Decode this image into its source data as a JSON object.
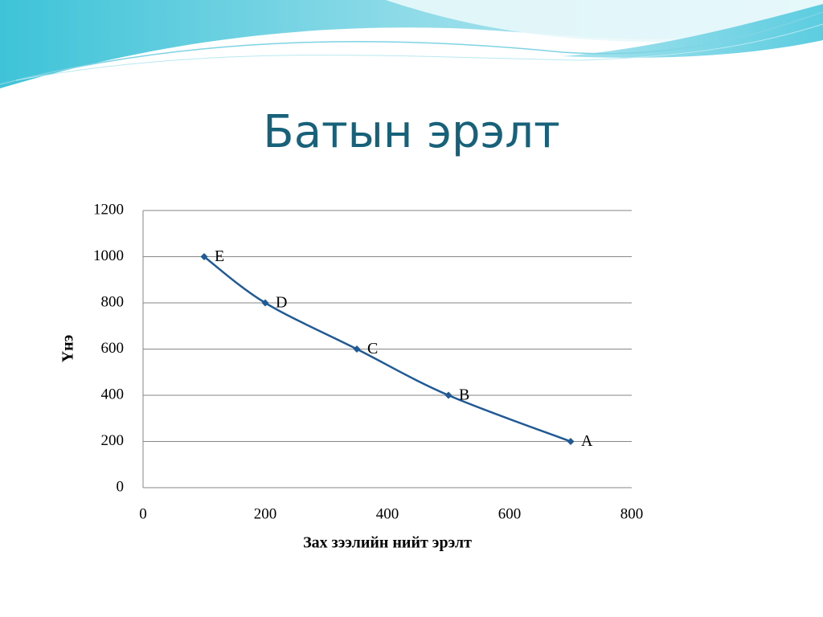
{
  "chart_data": {
    "type": "line",
    "title": "Батын эрэлт",
    "x_label": "Зах зээлийн нийт эрэлт",
    "y_label": "Үнэ",
    "x": [
      100,
      200,
      350,
      500,
      700
    ],
    "series": [
      {
        "color": "#1f5a96",
        "values": [
          1000,
          800,
          600,
          400,
          200
        ]
      }
    ],
    "point_labels": [
      "E",
      "D",
      "C",
      "B",
      "A"
    ],
    "xlim": [
      0,
      800
    ],
    "xticks": [
      0,
      200,
      400,
      600,
      800
    ],
    "ylim": [
      0,
      1200
    ],
    "yticks": [
      0,
      200,
      400,
      600,
      800,
      1000,
      1200
    ],
    "grid": true
  }
}
